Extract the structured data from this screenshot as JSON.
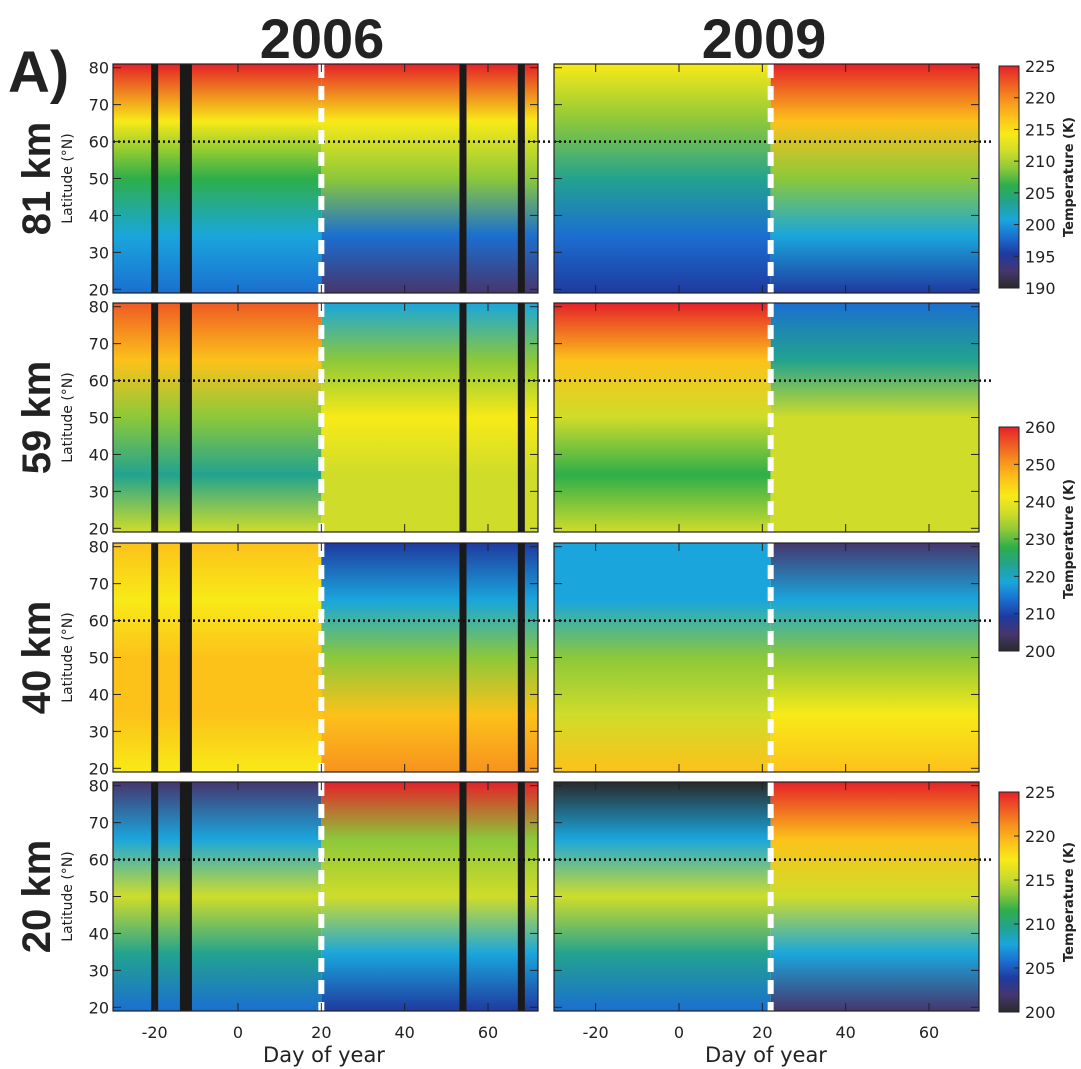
{
  "figure": {
    "panel_letter": "A)",
    "columns": [
      "2006",
      "2009"
    ],
    "xlabel": "Day of year",
    "ylabel": "Latitude (°N)",
    "colorbar_label": "Temperature (K)"
  },
  "chart_data": {
    "type": "heatmap",
    "x_ticks": [
      -20,
      0,
      20,
      40,
      60
    ],
    "y_ticks": [
      20,
      30,
      40,
      50,
      60,
      70,
      80
    ],
    "xlim": [
      -30,
      72
    ],
    "ylim": [
      19,
      81
    ],
    "reference_latitude": 60,
    "colormap": [
      "#2a2a2a",
      "#46366e",
      "#1f3aa0",
      "#1b6fd0",
      "#1aa6dc",
      "#22a38f",
      "#2eae4a",
      "#8cc83a",
      "#cfdc2a",
      "#f8ea18",
      "#fcc21a",
      "#f7931e",
      "#ef5a24",
      "#e52129"
    ],
    "rows": [
      {
        "altitude": "81 km",
        "colorbar": {
          "ticks": [
            190,
            195,
            200,
            205,
            210,
            215,
            220,
            225
          ],
          "range": [
            190,
            225
          ]
        },
        "panels": {
          "2006": {
            "sswd_day": 20,
            "data_gaps": [
              -20,
              -12.5,
              54,
              68
            ]
          },
          "2009": {
            "sswd_day": 22,
            "data_gaps": []
          }
        }
      },
      {
        "altitude": "59 km",
        "colorbar": {
          "ticks": [
            200,
            210,
            220,
            230,
            240,
            250,
            260
          ],
          "range": [
            200,
            260
          ]
        },
        "panels": {
          "2006": {
            "sswd_day": 20,
            "data_gaps": [
              -20,
              -12.5,
              54,
              68
            ]
          },
          "2009": {
            "sswd_day": 22,
            "data_gaps": []
          }
        }
      },
      {
        "altitude": "40 km",
        "colorbar": null,
        "panels": {
          "2006": {
            "sswd_day": 20,
            "data_gaps": [
              -20,
              -12.5,
              54,
              68
            ]
          },
          "2009": {
            "sswd_day": 22,
            "data_gaps": []
          }
        }
      },
      {
        "altitude": "20 km",
        "colorbar": {
          "ticks": [
            200,
            205,
            210,
            215,
            220,
            225
          ],
          "range": [
            200,
            225
          ]
        },
        "panels": {
          "2006": {
            "sswd_day": 20,
            "data_gaps": [
              -20,
              -12.5,
              54,
              68
            ]
          },
          "2009": {
            "sswd_day": 22,
            "data_gaps": []
          }
        }
      }
    ]
  }
}
